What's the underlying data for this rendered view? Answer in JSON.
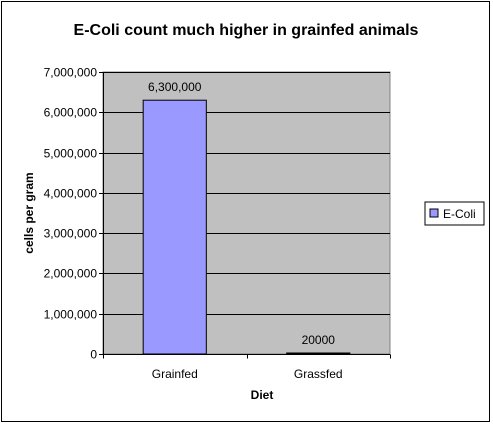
{
  "chart_data": {
    "type": "bar",
    "title": "E-Coli count much higher in grainfed animals",
    "xlabel": "Diet",
    "ylabel": "cells per gram",
    "categories": [
      "Grainfed",
      "Grassfed"
    ],
    "series": [
      {
        "name": "E-Coli",
        "values": [
          6300000,
          20000
        ],
        "color": "#9999ff"
      }
    ],
    "data_labels": [
      "6,300,000",
      "20000"
    ],
    "ylim": [
      0,
      7000000
    ],
    "y_ticks": [
      0,
      1000000,
      2000000,
      3000000,
      4000000,
      5000000,
      6000000,
      7000000
    ],
    "y_tick_labels": [
      "0",
      "1,000,000",
      "2,000,000",
      "3,000,000",
      "4,000,000",
      "5,000,000",
      "6,000,000",
      "7,000,000"
    ],
    "grid": true,
    "plot_background": "#c0c0c0",
    "legend_position": "right"
  }
}
